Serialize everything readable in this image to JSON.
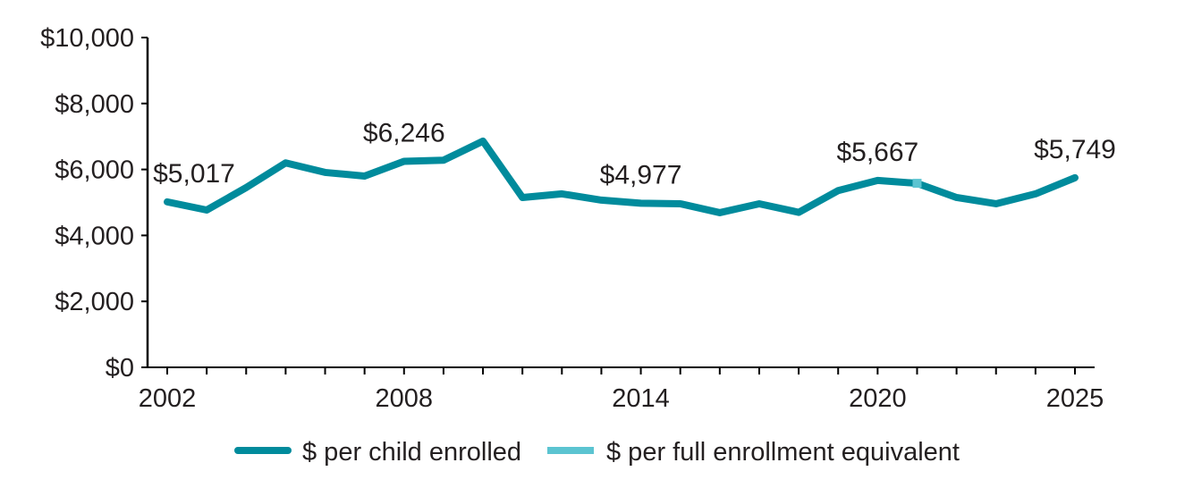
{
  "chart_data": {
    "type": "line",
    "title": "",
    "xlabel": "",
    "ylabel": "",
    "ylim": [
      0,
      10000
    ],
    "xlim": [
      2002,
      2025
    ],
    "yticks": [
      0,
      2000,
      4000,
      6000,
      8000,
      10000
    ],
    "ytick_labels": [
      "$0",
      "$2,000",
      "$4,000",
      "$6,000",
      "$8,000",
      "$10,000"
    ],
    "xtick_labels": [
      "2002",
      "2008",
      "2014",
      "2020",
      "2025"
    ],
    "xticks": [
      2002,
      2008,
      2014,
      2020,
      2025
    ],
    "x": [
      2002,
      2003,
      2004,
      2005,
      2006,
      2007,
      2008,
      2009,
      2010,
      2011,
      2012,
      2013,
      2014,
      2015,
      2016,
      2017,
      2018,
      2019,
      2020,
      2021,
      2022,
      2023,
      2024,
      2025
    ],
    "series": [
      {
        "name": "$ per child enrolled",
        "color": "#008b9c",
        "values": [
          5017,
          4770,
          5450,
          6200,
          5910,
          5800,
          6246,
          6280,
          6860,
          5150,
          5260,
          5070,
          4977,
          4960,
          4690,
          4960,
          4700,
          5360,
          5667,
          5580,
          5150,
          4960,
          5260,
          5749
        ]
      },
      {
        "name": "$ per full enrollment equivalent",
        "color": "#5bc4d1",
        "x": [
          2021
        ],
        "values": [
          5580
        ]
      }
    ],
    "annotations": [
      {
        "x": 2002,
        "text": "$5,017"
      },
      {
        "x": 2008,
        "text": "$6,246"
      },
      {
        "x": 2014,
        "text": "$4,977"
      },
      {
        "x": 2020,
        "text": "$5,667"
      },
      {
        "x": 2025,
        "text": "$5,749"
      }
    ],
    "grid": false,
    "legend": "bottom"
  }
}
